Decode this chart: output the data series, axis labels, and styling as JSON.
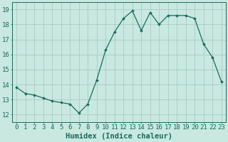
{
  "x": [
    0,
    1,
    2,
    3,
    4,
    5,
    6,
    7,
    8,
    9,
    10,
    11,
    12,
    13,
    14,
    15,
    16,
    17,
    18,
    19,
    20,
    21,
    22,
    23
  ],
  "y": [
    13.8,
    13.4,
    13.3,
    13.1,
    12.9,
    12.8,
    12.7,
    12.1,
    12.7,
    14.3,
    16.3,
    17.5,
    18.4,
    18.9,
    17.6,
    18.8,
    18.0,
    18.6,
    18.6,
    18.6,
    18.4,
    16.7,
    15.8,
    14.2
  ],
  "line_color": "#1a6b5a",
  "marker": "D",
  "marker_size": 2.0,
  "bg_color": "#c8e8e0",
  "grid_color": "#a8ccc6",
  "xlabel": "Humidex (Indice chaleur)",
  "ylim": [
    11.5,
    19.5
  ],
  "xlim": [
    -0.5,
    23.5
  ],
  "yticks": [
    12,
    13,
    14,
    15,
    16,
    17,
    18,
    19
  ],
  "xticks": [
    0,
    1,
    2,
    3,
    4,
    5,
    6,
    7,
    8,
    9,
    10,
    11,
    12,
    13,
    14,
    15,
    16,
    17,
    18,
    19,
    20,
    21,
    22,
    23
  ],
  "axis_color": "#1a6b5a",
  "font_size": 6.5,
  "xlabel_fontsize": 7.5,
  "linewidth": 0.9
}
